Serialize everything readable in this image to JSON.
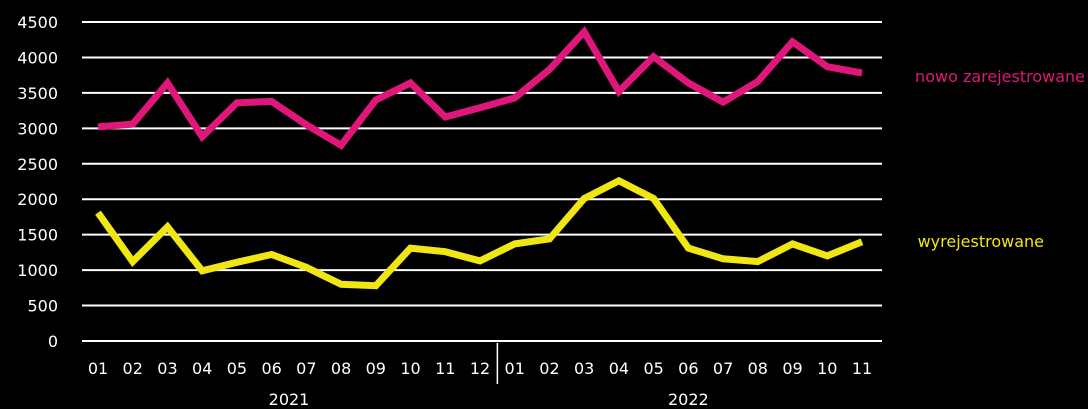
{
  "chart_data": {
    "type": "line",
    "x": [
      "01",
      "02",
      "03",
      "04",
      "05",
      "06",
      "07",
      "08",
      "09",
      "10",
      "11",
      "12",
      "01",
      "02",
      "03",
      "04",
      "05",
      "06",
      "07",
      "08",
      "09",
      "10",
      "11"
    ],
    "groups": [
      {
        "label": "2021",
        "count": 12
      },
      {
        "label": "2022",
        "count": 11
      }
    ],
    "yticks": [
      "0",
      "500",
      "1000",
      "1500",
      "2000",
      "2500",
      "3000",
      "3500",
      "4000",
      "4500"
    ],
    "ylim": [
      0,
      4500
    ],
    "grid": true,
    "series": [
      {
        "name": "nowo zarejestrowane",
        "color": "#e0177a",
        "values": [
          3020,
          3060,
          3640,
          2880,
          3360,
          3380,
          3050,
          2760,
          3400,
          3640,
          3160,
          3290,
          3430,
          3830,
          4360,
          3520,
          4010,
          3640,
          3370,
          3660,
          4220,
          3870,
          3780
        ]
      },
      {
        "name": "wyrejestrowane",
        "color": "#f0e614",
        "values": [
          1810,
          1120,
          1610,
          990,
          1110,
          1220,
          1040,
          800,
          780,
          1310,
          1260,
          1130,
          1370,
          1440,
          2010,
          2260,
          2010,
          1310,
          1160,
          1120,
          1370,
          1200,
          1400
        ]
      }
    ]
  }
}
